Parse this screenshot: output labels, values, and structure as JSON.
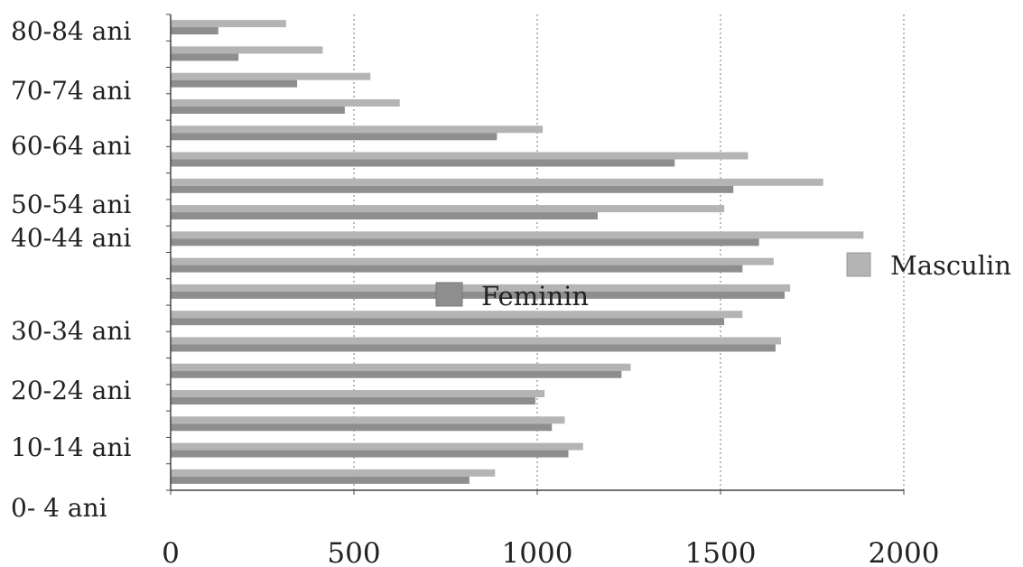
{
  "chart_data": {
    "type": "bar",
    "orientation": "horizontal",
    "x_ticks": [
      "0",
      "500",
      "1000",
      "1500",
      "2000"
    ],
    "xlim": [
      0,
      2000
    ],
    "grid": "vertical dashed at x ticks",
    "y_tick_labels": [
      "80-84 ani",
      "70-74 ani",
      "60-64 ani",
      "50-54 ani",
      "40-44 ani",
      "30-34 ani",
      "20-24 ani",
      "10-14 ani",
      "0- 4 ani"
    ],
    "categories_count": 18,
    "series": [
      {
        "name": "Masculin",
        "color": "#b4b4b4",
        "values": [
          885,
          1125,
          1075,
          1020,
          1255,
          1665,
          1560,
          1690,
          1645,
          1890,
          1510,
          1780,
          1575,
          1015,
          625,
          545,
          415,
          315
        ]
      },
      {
        "name": "Feminin",
        "color": "#8e8e8e",
        "values": [
          815,
          1085,
          1040,
          995,
          1230,
          1650,
          1510,
          1675,
          1560,
          1605,
          1165,
          1535,
          1375,
          890,
          475,
          345,
          185,
          130
        ]
      }
    ],
    "legend": [
      {
        "label": "Masculin",
        "color": "#b4b4b4",
        "placement": "right"
      },
      {
        "label": "Feminin",
        "color": "#8e8e8e",
        "placement": "center"
      }
    ]
  }
}
